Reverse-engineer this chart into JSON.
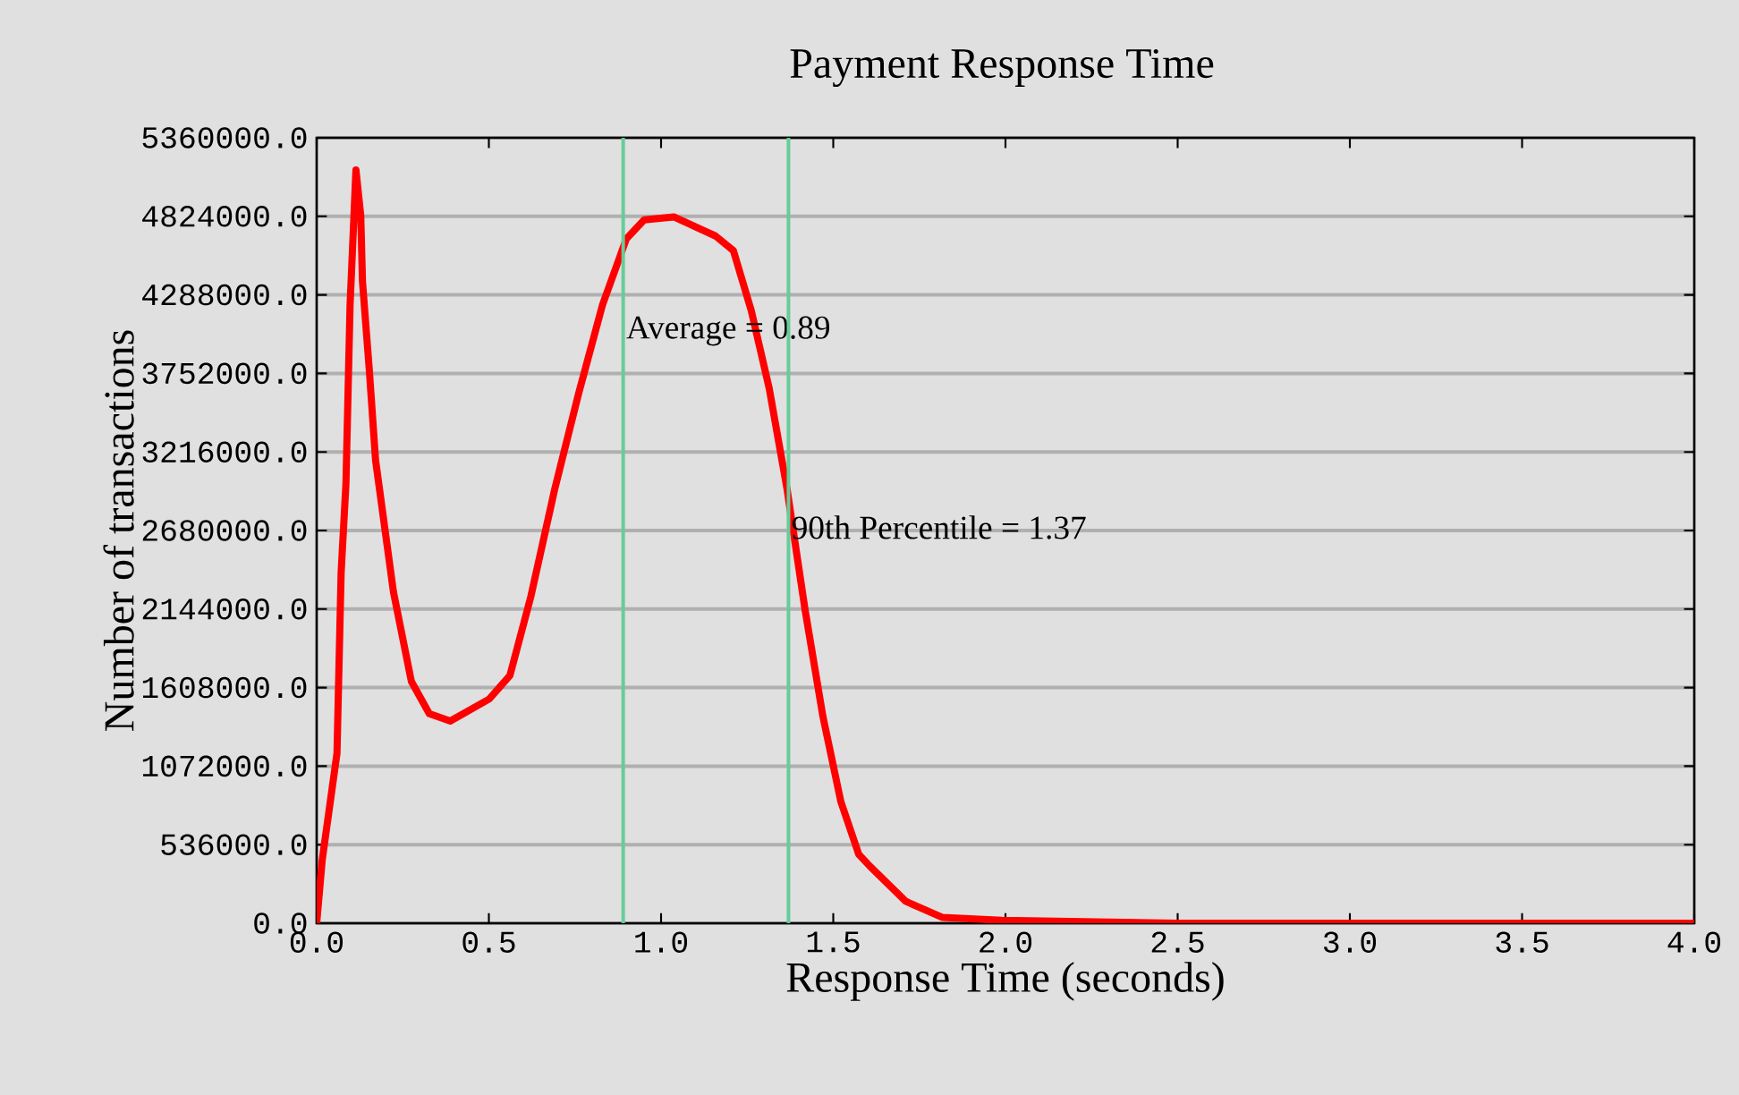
{
  "chart_data": {
    "type": "line",
    "title": "Payment Response Time",
    "xlabel": "Response Time (seconds)",
    "ylabel": "Number of transactions",
    "x": [
      0,
      0.016,
      0.059,
      0.071,
      0.085,
      0.097,
      0.114,
      0.128,
      0.133,
      0.153,
      0.171,
      0.223,
      0.275,
      0.327,
      0.388,
      0.501,
      0.561,
      0.622,
      0.691,
      0.76,
      0.83,
      0.899,
      0.951,
      1.037,
      1.158,
      1.21,
      1.262,
      1.314,
      1.366,
      1.418,
      1.47,
      1.522,
      1.574,
      1.606,
      1.71,
      1.816,
      1.99,
      2.5,
      3.0,
      3.5,
      4.0
    ],
    "series": [
      {
        "color": "#ff0000",
        "values": [
          0,
          430000,
          1160000,
          2390000,
          3000000,
          4220000,
          5140000,
          4830000,
          4380000,
          3770000,
          3160000,
          2260000,
          1650000,
          1430000,
          1380000,
          1530000,
          1690000,
          2230000,
          2960000,
          3610000,
          4220000,
          4670000,
          4800000,
          4820000,
          4690000,
          4590000,
          4180000,
          3650000,
          2960000,
          2140000,
          1410000,
          830000,
          470000,
          390000,
          150000,
          40000,
          20000,
          0,
          0,
          0,
          0
        ]
      }
    ],
    "xlim": [
      0,
      4.0
    ],
    "ylim": [
      0,
      5360000
    ],
    "xticks": [
      {
        "value": 0,
        "label": "0.0"
      },
      {
        "value": 0.5,
        "label": "0.5"
      },
      {
        "value": 1,
        "label": "1.0"
      },
      {
        "value": 1.5,
        "label": "1.5"
      },
      {
        "value": 2,
        "label": "2.0"
      },
      {
        "value": 2.5,
        "label": "2.5"
      },
      {
        "value": 3,
        "label": "3.0"
      },
      {
        "value": 3.5,
        "label": "3.5"
      },
      {
        "value": 4,
        "label": "4.0"
      }
    ],
    "yticks": [
      {
        "value": 0,
        "label": "0.0"
      },
      {
        "value": 536000,
        "label": "536000.0"
      },
      {
        "value": 1072000,
        "label": "1072000.0"
      },
      {
        "value": 1608000,
        "label": "1608000.0"
      },
      {
        "value": 2144000,
        "label": "2144000.0"
      },
      {
        "value": 2680000,
        "label": "2680000.0"
      },
      {
        "value": 3216000,
        "label": "3216000.0"
      },
      {
        "value": 3752000,
        "label": "3752000.0"
      },
      {
        "value": 4288000,
        "label": "4288000.0"
      },
      {
        "value": 4824000,
        "label": "4824000.0"
      },
      {
        "value": 5360000,
        "label": "5360000.0"
      }
    ],
    "grid": "y",
    "ref_lines": [
      {
        "axis": "x",
        "value": 0.89,
        "label": "Average = 0.89",
        "color": "#66cc99"
      },
      {
        "axis": "x",
        "value": 1.37,
        "label": "90th Percentile = 1.37",
        "color": "#66cc99"
      }
    ]
  }
}
